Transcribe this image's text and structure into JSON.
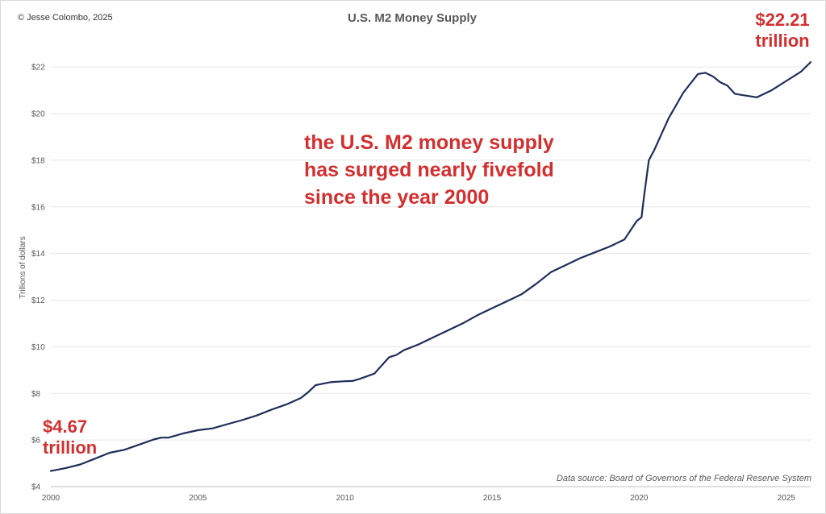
{
  "copyright": "© Jesse Colombo, 2025",
  "source_note": "Data source: Board of Governors of the Federal Reserve System",
  "callouts": {
    "end": [
      "$22.21",
      "trillion"
    ],
    "start": [
      "$4.67",
      "trillion"
    ],
    "annotation": [
      "the U.S. M2 money supply",
      "has surged nearly fivefold",
      "since the year 2000"
    ]
  },
  "colors": {
    "line": "#1f2d5a",
    "callout": "#d32f2f",
    "grid": "#e6e6e6"
  },
  "chart_data": {
    "type": "line",
    "title": "U.S. M2 Money Supply",
    "xlabel": "",
    "ylabel": "Trillions of dollars",
    "xlim": [
      2000.0,
      2025.83
    ],
    "ylim": [
      4,
      22.8
    ],
    "grid": true,
    "x_ticks": [
      2000,
      2005,
      2010,
      2015,
      2020,
      2025
    ],
    "y_ticks": [
      4,
      6,
      8,
      10,
      12,
      14,
      16,
      18,
      20,
      22
    ],
    "y_tick_labels": [
      "$4",
      "$6",
      "$8",
      "$10",
      "$12",
      "$14",
      "$16",
      "$18",
      "$20",
      "$22"
    ],
    "series": [
      {
        "x": [
          2000.0,
          2000.5,
          2001.0,
          2001.5,
          2002.0,
          2002.5,
          2003.0,
          2003.5,
          2003.75,
          2004.0,
          2004.5,
          2005.0,
          2005.5,
          2006.0,
          2006.5,
          2007.0,
          2007.5,
          2008.0,
          2008.5,
          2008.75,
          2009.0,
          2009.5,
          2010.0,
          2010.25,
          2010.5,
          2011.0,
          2011.25,
          2011.5,
          2011.75,
          2012.0,
          2012.5,
          2013.0,
          2013.5,
          2014.0,
          2014.5,
          2015.0,
          2015.5,
          2016.0,
          2016.5,
          2017.0,
          2017.5,
          2018.0,
          2018.5,
          2019.0,
          2019.5,
          2019.92,
          2020.08,
          2020.17,
          2020.33,
          2020.5,
          2021.0,
          2021.5,
          2022.0,
          2022.25,
          2022.5,
          2022.75,
          2023.0,
          2023.25,
          2023.5,
          2024.0,
          2024.5,
          2025.0,
          2025.5,
          2025.83
        ],
        "y": [
          4.67,
          4.79,
          4.95,
          5.2,
          5.45,
          5.58,
          5.8,
          6.02,
          6.1,
          6.1,
          6.28,
          6.42,
          6.5,
          6.68,
          6.85,
          7.05,
          7.3,
          7.52,
          7.8,
          8.05,
          8.35,
          8.48,
          8.52,
          8.53,
          8.62,
          8.85,
          9.2,
          9.55,
          9.65,
          9.85,
          10.1,
          10.4,
          10.7,
          11.0,
          11.35,
          11.65,
          11.95,
          12.25,
          12.7,
          13.2,
          13.5,
          13.8,
          14.05,
          14.3,
          14.6,
          15.4,
          15.55,
          16.5,
          18.0,
          18.4,
          19.8,
          20.9,
          21.7,
          21.75,
          21.6,
          21.35,
          21.2,
          20.85,
          20.8,
          20.7,
          21.0,
          21.4,
          21.8,
          22.21
        ]
      }
    ]
  }
}
